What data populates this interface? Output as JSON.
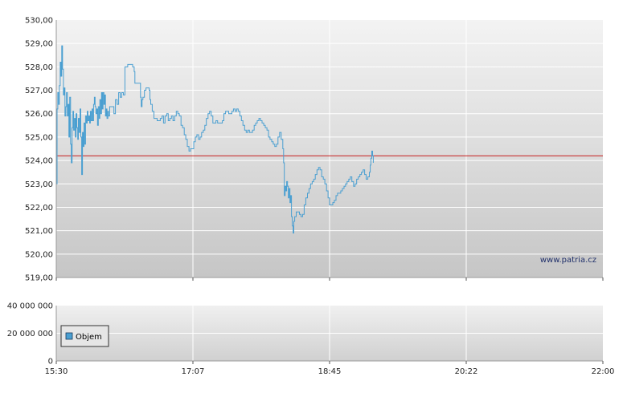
{
  "chart_data": [
    {
      "type": "line",
      "title": "",
      "xlabel": "",
      "ylabel": "",
      "ylim": [
        519,
        530
      ],
      "y_ticks": [
        "530,00",
        "529,00",
        "528,00",
        "527,00",
        "526,00",
        "525,00",
        "524,00",
        "523,00",
        "522,00",
        "521,00",
        "520,00",
        "519,00"
      ],
      "x_ticks": [
        "15:30",
        "17:07",
        "18:45",
        "20:22",
        "22:00"
      ],
      "x_domain_minutes": [
        930,
        1320
      ],
      "reference_line": 524.2,
      "watermark": "www.patria.cz",
      "grid": true,
      "series": [
        {
          "points": [
            [
              930,
              523.0
            ],
            [
              930.6,
              526.2
            ],
            [
              931.1,
              526.9
            ],
            [
              931.7,
              526.4
            ],
            [
              932.2,
              527.2
            ],
            [
              932.8,
              528.2
            ],
            [
              933.4,
              527.6
            ],
            [
              933.9,
              528.9
            ],
            [
              934.5,
              527.9
            ],
            [
              935.1,
              526.8
            ],
            [
              935.6,
              527.1
            ],
            [
              936.2,
              525.9
            ],
            [
              936.8,
              526.3
            ],
            [
              937.3,
              526.9
            ],
            [
              937.9,
              525.9
            ],
            [
              938.5,
              526.4
            ],
            [
              939,
              525.0
            ],
            [
              939.6,
              526.7
            ],
            [
              940.2,
              524.7
            ],
            [
              940.7,
              523.9
            ],
            [
              941.3,
              525.4
            ],
            [
              941.9,
              526.1
            ],
            [
              942.4,
              525.3
            ],
            [
              943,
              525.8
            ],
            [
              943.6,
              525.0
            ],
            [
              944.1,
              526.0
            ],
            [
              944.7,
              525.4
            ],
            [
              945.3,
              524.9
            ],
            [
              945.8,
              525.8
            ],
            [
              946.4,
              525.2
            ],
            [
              947,
              526.2
            ],
            [
              947.5,
              525.0
            ],
            [
              948.1,
              523.4
            ],
            [
              948.7,
              525.2
            ],
            [
              949.2,
              524.6
            ],
            [
              949.8,
              525.6
            ],
            [
              950.4,
              524.7
            ],
            [
              950.9,
              525.9
            ],
            [
              951.5,
              525.6
            ],
            [
              952.1,
              526.1
            ],
            [
              952.6,
              525.7
            ],
            [
              953.2,
              525.9
            ],
            [
              953.8,
              525.6
            ],
            [
              954.3,
              526.1
            ],
            [
              954.9,
              525.7
            ],
            [
              955.5,
              526.2
            ],
            [
              956,
              525.7
            ],
            [
              956.6,
              526.4
            ],
            [
              957.2,
              526.7
            ],
            [
              957.7,
              526.3
            ],
            [
              958.3,
              526.0
            ],
            [
              958.9,
              526.2
            ],
            [
              959.4,
              525.5
            ],
            [
              960,
              526.3
            ],
            [
              960.6,
              525.8
            ],
            [
              961.1,
              526.6
            ],
            [
              961.7,
              526.0
            ],
            [
              962.3,
              526.9
            ],
            [
              962.8,
              526.2
            ],
            [
              963.4,
              526.9
            ],
            [
              964,
              526.4
            ],
            [
              964.5,
              526.8
            ],
            [
              965.1,
              525.9
            ],
            [
              965.7,
              526.2
            ],
            [
              966.2,
              525.8
            ],
            [
              966.8,
              526.1
            ],
            [
              967.3,
              525.9
            ],
            [
              968.1,
              526.3
            ],
            [
              970,
              526.3
            ],
            [
              971.1,
              526.0
            ],
            [
              972.2,
              526.6
            ],
            [
              973.4,
              526.4
            ],
            [
              974.5,
              526.9
            ],
            [
              975.6,
              526.7
            ],
            [
              976.7,
              526.9
            ],
            [
              977.9,
              526.8
            ],
            [
              979,
              528.0
            ],
            [
              981,
              528.1
            ],
            [
              984.5,
              528.0
            ],
            [
              985.6,
              527.8
            ],
            [
              986.1,
              527.3
            ],
            [
              989.5,
              527.3
            ],
            [
              990.1,
              526.7
            ],
            [
              990.6,
              526.3
            ],
            [
              991.2,
              526.6
            ],
            [
              991.8,
              526.7
            ],
            [
              992.9,
              527.0
            ],
            [
              994,
              527.1
            ],
            [
              995.2,
              527.1
            ],
            [
              996.3,
              527.0
            ],
            [
              996.8,
              526.6
            ],
            [
              997.4,
              526.4
            ],
            [
              998.5,
              526.1
            ],
            [
              999.7,
              525.8
            ],
            [
              1000.8,
              525.8
            ],
            [
              1002,
              525.7
            ],
            [
              1003.1,
              525.7
            ],
            [
              1004.2,
              525.8
            ],
            [
              1005.4,
              525.9
            ],
            [
              1006.5,
              525.6
            ],
            [
              1007.6,
              525.9
            ],
            [
              1008.8,
              526.0
            ],
            [
              1009.9,
              525.7
            ],
            [
              1011,
              525.8
            ],
            [
              1012.2,
              525.9
            ],
            [
              1013.3,
              525.7
            ],
            [
              1014.4,
              525.9
            ],
            [
              1015.6,
              526.1
            ],
            [
              1016.7,
              526.0
            ],
            [
              1017.8,
              525.9
            ],
            [
              1019,
              525.5
            ],
            [
              1020.1,
              525.4
            ],
            [
              1021.3,
              525.1
            ],
            [
              1022.4,
              524.9
            ],
            [
              1023.5,
              524.6
            ],
            [
              1024.7,
              524.4
            ],
            [
              1025.8,
              524.5
            ],
            [
              1026.9,
              524.5
            ],
            [
              1028.1,
              524.8
            ],
            [
              1029.2,
              525.0
            ],
            [
              1030.3,
              525.1
            ],
            [
              1031.5,
              524.9
            ],
            [
              1032.6,
              525.0
            ],
            [
              1033.7,
              525.2
            ],
            [
              1034.9,
              525.3
            ],
            [
              1036,
              525.5
            ],
            [
              1037.1,
              525.8
            ],
            [
              1038.3,
              526.0
            ],
            [
              1039.4,
              526.1
            ],
            [
              1040.5,
              525.9
            ],
            [
              1041.7,
              525.6
            ],
            [
              1042.8,
              525.6
            ],
            [
              1043.9,
              525.7
            ],
            [
              1045.1,
              525.6
            ],
            [
              1046.2,
              525.6
            ],
            [
              1047.4,
              525.6
            ],
            [
              1048.5,
              525.7
            ],
            [
              1049.6,
              526.0
            ],
            [
              1050.8,
              526.1
            ],
            [
              1051.9,
              526.1
            ],
            [
              1053,
              526.0
            ],
            [
              1054.2,
              526.0
            ],
            [
              1055.3,
              526.1
            ],
            [
              1056.4,
              526.2
            ],
            [
              1057.6,
              526.1
            ],
            [
              1058.7,
              526.2
            ],
            [
              1059.8,
              526.1
            ],
            [
              1061,
              525.9
            ],
            [
              1062.1,
              525.7
            ],
            [
              1063.2,
              525.5
            ],
            [
              1064.4,
              525.3
            ],
            [
              1065.5,
              525.2
            ],
            [
              1066.6,
              525.3
            ],
            [
              1067.8,
              525.2
            ],
            [
              1068.9,
              525.2
            ],
            [
              1070,
              525.3
            ],
            [
              1071.2,
              525.5
            ],
            [
              1072.3,
              525.6
            ],
            [
              1073.4,
              525.7
            ],
            [
              1074.6,
              525.8
            ],
            [
              1075.7,
              525.7
            ],
            [
              1076.8,
              525.6
            ],
            [
              1078,
              525.5
            ],
            [
              1079.1,
              525.4
            ],
            [
              1080.3,
              525.3
            ],
            [
              1081.4,
              525.0
            ],
            [
              1082.5,
              524.9
            ],
            [
              1083.7,
              524.8
            ],
            [
              1084.8,
              524.7
            ],
            [
              1085.9,
              524.6
            ],
            [
              1087.1,
              524.7
            ],
            [
              1088.2,
              525.0
            ],
            [
              1089.3,
              525.2
            ],
            [
              1090.5,
              524.9
            ],
            [
              1091.6,
              524.5
            ],
            [
              1092.2,
              523.9
            ],
            [
              1092.7,
              522.5
            ],
            [
              1093.3,
              522.9
            ],
            [
              1093.9,
              522.7
            ],
            [
              1094.4,
              523.1
            ],
            [
              1095,
              522.9
            ],
            [
              1095.6,
              522.4
            ],
            [
              1096.1,
              522.8
            ],
            [
              1096.7,
              522.2
            ],
            [
              1097.3,
              522.5
            ],
            [
              1097.8,
              521.6
            ],
            [
              1098.4,
              521.2
            ],
            [
              1099,
              520.9
            ],
            [
              1099.5,
              521.4
            ],
            [
              1100.1,
              521.6
            ],
            [
              1101.2,
              521.8
            ],
            [
              1102.4,
              521.8
            ],
            [
              1103.5,
              521.7
            ],
            [
              1104.6,
              521.6
            ],
            [
              1105.8,
              521.7
            ],
            [
              1106.9,
              522.1
            ],
            [
              1108,
              522.4
            ],
            [
              1109.2,
              522.6
            ],
            [
              1110.3,
              522.8
            ],
            [
              1111.4,
              523.0
            ],
            [
              1112.6,
              523.1
            ],
            [
              1113.7,
              523.2
            ],
            [
              1114.8,
              523.4
            ],
            [
              1116,
              523.6
            ],
            [
              1117.1,
              523.7
            ],
            [
              1118.2,
              523.6
            ],
            [
              1119.4,
              523.3
            ],
            [
              1120.5,
              523.2
            ],
            [
              1121.6,
              523.0
            ],
            [
              1122.8,
              522.7
            ],
            [
              1123.9,
              522.4
            ],
            [
              1125,
              522.1
            ],
            [
              1126.2,
              522.1
            ],
            [
              1127.3,
              522.2
            ],
            [
              1128.4,
              522.3
            ],
            [
              1129.6,
              522.5
            ],
            [
              1130.7,
              522.6
            ],
            [
              1131.9,
              522.6
            ],
            [
              1133,
              522.7
            ],
            [
              1134.1,
              522.8
            ],
            [
              1135.3,
              522.9
            ],
            [
              1136.4,
              523.0
            ],
            [
              1137.5,
              523.1
            ],
            [
              1138.7,
              523.2
            ],
            [
              1139.8,
              523.3
            ],
            [
              1140.9,
              523.1
            ],
            [
              1142.1,
              522.9
            ],
            [
              1143.2,
              523.0
            ],
            [
              1144.3,
              523.2
            ],
            [
              1145.5,
              523.3
            ],
            [
              1146.6,
              523.4
            ],
            [
              1147.7,
              523.5
            ],
            [
              1148.9,
              523.6
            ],
            [
              1150,
              523.4
            ],
            [
              1151.1,
              523.2
            ],
            [
              1152.3,
              523.3
            ],
            [
              1153.4,
              523.5
            ],
            [
              1154,
              523.8
            ],
            [
              1154.5,
              524.1
            ],
            [
              1155.1,
              524.4
            ],
            [
              1155.7,
              524.2
            ],
            [
              1156.2,
              523.9
            ]
          ]
        }
      ]
    },
    {
      "type": "bar",
      "title": "",
      "ylim": [
        0,
        40000000
      ],
      "y_ticks": [
        "40 000 000",
        "20 000 000",
        "0"
      ],
      "x_ticks": [
        "15:30",
        "17:07",
        "18:45",
        "20:22",
        "22:00"
      ],
      "series": [
        {
          "name": "Objem",
          "values": []
        }
      ]
    }
  ],
  "colors": {
    "line": "#4a9fd1",
    "reference_line": "#c8201e",
    "plot_top": "#f2f2f2",
    "plot_bottom": "#c7c7c7",
    "grid": "#ffffff",
    "legend_swatch": "#4a9fd1"
  }
}
